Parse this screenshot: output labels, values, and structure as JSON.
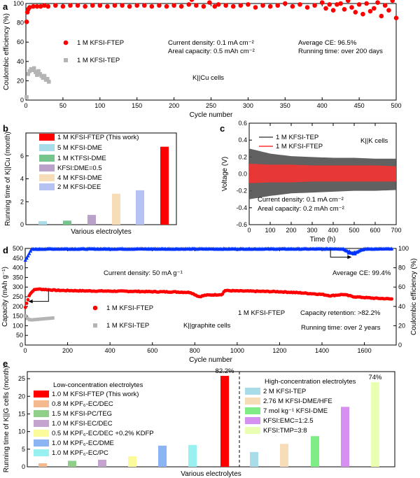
{
  "figure": {
    "panel_labels": [
      "a",
      "b",
      "c",
      "d",
      "e"
    ]
  },
  "chart_data": [
    {
      "panel": "a",
      "type": "scatter",
      "xlabel": "Cycle number",
      "ylabel": "Coulombic efficiency (%)",
      "xlim": [
        0,
        500
      ],
      "ylim": [
        0,
        100
      ],
      "xticks": [
        0,
        50,
        100,
        150,
        200,
        250,
        300,
        350,
        400,
        450,
        500
      ],
      "yticks": [
        0,
        20,
        40,
        60,
        80,
        100
      ],
      "series": [
        {
          "name": "1 M KFSI-FTEP",
          "color": "#ff0000",
          "marker": "circle",
          "x": [
            1,
            2,
            3,
            5,
            10,
            15,
            20,
            25,
            30,
            40,
            50,
            60,
            70,
            80,
            90,
            100,
            110,
            120,
            130,
            140,
            150,
            160,
            170,
            180,
            190,
            200,
            210,
            220,
            224,
            230,
            240,
            248,
            255,
            260,
            270,
            280,
            290,
            300,
            310,
            320,
            330,
            340,
            350,
            360,
            370,
            380,
            390,
            400,
            405,
            410,
            415,
            420,
            425,
            430,
            435,
            440,
            445,
            450,
            455,
            460,
            465,
            470,
            475,
            480,
            485,
            490,
            495,
            500
          ],
          "y": [
            81,
            91,
            94,
            96,
            97,
            97,
            97,
            98,
            97,
            98,
            97,
            98,
            98,
            97,
            98,
            98,
            97,
            98,
            98,
            97,
            98,
            98,
            97,
            98,
            97,
            98,
            97,
            99,
            104,
            98,
            97,
            101,
            97,
            99,
            98,
            97,
            98,
            99,
            96,
            98,
            97,
            98,
            100,
            97,
            99,
            96,
            98,
            101,
            95,
            99,
            93,
            99,
            100,
            94,
            103,
            96,
            91,
            99,
            89,
            100,
            92,
            95,
            101,
            87,
            98,
            93,
            103,
            85
          ]
        },
        {
          "name": "1 M KFSI-TEP",
          "color": "#b4b4b4",
          "marker": "square",
          "x": [
            1,
            3,
            5,
            7,
            9,
            11,
            13,
            15,
            17,
            19,
            21,
            23,
            25,
            27,
            29,
            31
          ],
          "y": [
            3,
            27,
            30,
            32,
            31,
            33,
            29,
            26,
            30,
            27,
            25,
            23,
            25,
            21,
            22,
            19
          ]
        }
      ],
      "annotations": [
        "Current density: 0.1 mA cm⁻²",
        "Areal capacity: 0.5 mAh cm⁻²",
        "Average CE: 96.5%",
        "Running time: over 200 days",
        "K||Cu cells"
      ]
    },
    {
      "panel": "b",
      "type": "bar",
      "xlabel": "Various electrolytes",
      "ylabel": "Running time of K||Cu (month)",
      "ylim": [
        0,
        8
      ],
      "yticks": [
        0,
        2,
        4,
        6
      ],
      "categories": [
        "1 M KFSI-FTEP (This work)",
        "5 M KFSI-DME",
        "1 M KTFSI-DME",
        "KFSI:DME=0.5",
        "4 M KFSI-DME",
        "2 M KFSI-DEE"
      ],
      "values": [
        6.8,
        0.3,
        0.35,
        0.85,
        2.7,
        3.0
      ],
      "plot_order": [
        1,
        2,
        3,
        4,
        5,
        0
      ],
      "colors": [
        "#ff0000",
        "#a8dce8",
        "#76c58d",
        "#b9a1c9",
        "#f6ddb8",
        "#b6c3f2"
      ]
    },
    {
      "panel": "c",
      "type": "line",
      "xlabel": "Time (h)",
      "ylabel": "Voltage (V)",
      "xlim": [
        0,
        700
      ],
      "ylim": [
        -0.6,
        0.6
      ],
      "xticks": [
        0,
        100,
        200,
        300,
        400,
        500,
        600,
        700
      ],
      "yticks": [
        -0.6,
        -0.4,
        -0.2,
        0.0,
        0.2,
        0.4,
        0.6
      ],
      "series": [
        {
          "name": "1 M KFSI-TEP",
          "color": "#505050",
          "x": [
            0,
            100,
            200,
            300,
            400,
            500,
            600,
            700
          ],
          "upper": [
            0.3,
            0.24,
            0.21,
            0.2,
            0.19,
            0.19,
            0.18,
            0.18
          ],
          "lower": [
            -0.3,
            -0.26,
            -0.23,
            -0.22,
            -0.21,
            -0.2,
            -0.2,
            -0.19
          ]
        },
        {
          "name": "1 M KFSI-FTEP",
          "color": "#ff3030",
          "x": [
            0,
            100,
            200,
            300,
            400,
            500,
            600,
            700
          ],
          "upper": [
            0.12,
            0.11,
            0.11,
            0.1,
            0.1,
            0.1,
            0.1,
            0.09
          ],
          "lower": [
            -0.11,
            -0.1,
            -0.1,
            -0.09,
            -0.09,
            -0.09,
            -0.09,
            -0.09
          ]
        }
      ],
      "annotations": [
        "K||K cells",
        "Current density: 0.1 mA cm⁻²",
        "Areal capacity: 0.2 mAh cm⁻²"
      ]
    },
    {
      "panel": "d",
      "type": "scatter",
      "xlabel": "Cycle number",
      "ylabel": "Capacity (mAh g⁻¹)",
      "ylabel_right": "Coulombic efficiency (%)",
      "xlim": [
        0,
        1750
      ],
      "ylim": [
        0,
        500
      ],
      "ylim_right": [
        0,
        100
      ],
      "xticks": [
        0,
        200,
        400,
        600,
        800,
        1000,
        1200,
        1400,
        1600
      ],
      "yticks": [
        0,
        50,
        100,
        150,
        200,
        250,
        300,
        350,
        400,
        450,
        500
      ],
      "yticks_right": [
        0,
        20,
        40,
        60,
        80,
        100
      ],
      "series": [
        {
          "name": "1 M KFSI-FTEP",
          "color": "#ff0000",
          "marker": "circle",
          "axis": "left",
          "x": [
            1,
            20,
            40,
            60,
            80,
            100,
            150,
            200,
            300,
            400,
            500,
            600,
            700,
            780,
            820,
            850,
            900,
            930,
            940,
            1000,
            1100,
            1200,
            1300,
            1400,
            1440,
            1500,
            1550,
            1600,
            1650,
            1700,
            1730
          ],
          "y": [
            195,
            260,
            285,
            290,
            288,
            287,
            283,
            282,
            280,
            279,
            278,
            276,
            275,
            272,
            250,
            258,
            260,
            262,
            282,
            280,
            278,
            276,
            270,
            262,
            255,
            262,
            250,
            246,
            242,
            240,
            238
          ]
        },
        {
          "name": "1 M KFSI-TEP",
          "color": "#b4b4b4",
          "marker": "square",
          "axis": "left",
          "x": [
            1,
            10,
            20,
            30,
            40,
            50,
            60,
            70,
            80,
            90,
            100,
            110,
            120,
            130
          ],
          "y": [
            150,
            138,
            132,
            130,
            131,
            132,
            133,
            134,
            135,
            136,
            137,
            138,
            139,
            140
          ]
        },
        {
          "name": "CE (1 M KFSI-FTEP)",
          "color": "#0033ff",
          "marker": "triangle",
          "axis": "right",
          "x": [
            1,
            30,
            100,
            200,
            300,
            400,
            500,
            600,
            700,
            800,
            900,
            1000,
            1100,
            1200,
            1300,
            1400,
            1470,
            1500,
            1530,
            1550,
            1600,
            1700,
            1730
          ],
          "y": [
            88,
            99,
            99.4,
            99.4,
            99.4,
            99.4,
            99.4,
            99.4,
            99.4,
            99.4,
            99.4,
            99.4,
            99.4,
            99.4,
            99.4,
            99.4,
            99.6,
            99.4,
            96,
            95,
            99.4,
            99.4,
            99.4
          ]
        }
      ],
      "annotations": [
        "Current density: 50 mA g⁻¹",
        "Average CE: 99.4%",
        "1 M KFSI-FTEP",
        "Capacity retention: >82.2%",
        "K||graphite cells",
        "Running time: over 2 years"
      ]
    },
    {
      "panel": "e",
      "type": "bar",
      "xlabel": "Various electrolytes",
      "ylabel": "Running time of K||G cells (month)",
      "ylim": [
        0,
        27
      ],
      "yticks": [
        0,
        5,
        10,
        15,
        20,
        25
      ],
      "group_titles": [
        "Low-concentration electrolytes",
        "High-concentration electrolytes"
      ],
      "categories": [
        "1.0 M KFSI-FTEP (This work)",
        "0.8 M KPF₆-EC/DEC",
        "1.5 M KFSI-PC/TEG",
        "1.0 M KFSI-EC/DEC",
        "0.5 M KPF₆-EC/DEC +0.2% KDFP",
        "1.0 M KPF₆-EC/DME",
        "1.0 M KPF₆-EC/PC",
        "2 M KFSI-TEP",
        "2.76 M KFSI-DME/HFE",
        "7 mol kg⁻¹ KFSI-DME",
        "KFSI:EMC=1:2.5",
        "KFSI:TMP=3:8"
      ],
      "values": [
        25.8,
        1.0,
        1.7,
        2.0,
        3.0,
        6.0,
        6.2,
        4.2,
        6.5,
        8.7,
        17.0,
        24.0
      ],
      "plot_order": [
        1,
        2,
        3,
        4,
        5,
        6,
        0,
        7,
        8,
        9,
        10,
        11
      ],
      "colors": [
        "#ff0000",
        "#f4b98e",
        "#8fcf8a",
        "#c5a3cf",
        "#fbfb9c",
        "#8ab4f2",
        "#99f0f0",
        "#a8dce8",
        "#f6ddb8",
        "#80ec85",
        "#d690f0",
        "#e9ffb1"
      ],
      "labels": {
        "1.0 M KFSI-FTEP (This work)": "82.2%",
        "KFSI:TMP=3:8": "74%"
      }
    }
  ]
}
